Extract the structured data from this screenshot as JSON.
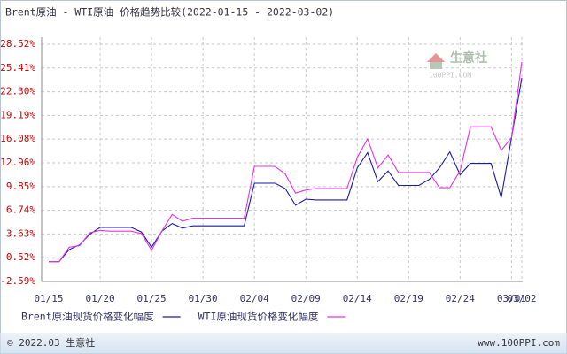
{
  "chart_data": {
    "type": "line",
    "title": "Brent原油 - WTI原油 价格趋势比较(2022-01-15 - 2022-03-02)",
    "categories": [
      "01/15",
      null,
      null,
      null,
      null,
      "01/20",
      null,
      null,
      null,
      null,
      "01/25",
      null,
      null,
      null,
      null,
      "01/30",
      null,
      null,
      null,
      null,
      "02/04",
      null,
      null,
      null,
      null,
      "02/09",
      null,
      null,
      null,
      null,
      "02/14",
      null,
      null,
      null,
      null,
      "02/19",
      null,
      null,
      null,
      null,
      "02/24",
      null,
      null,
      null,
      null,
      "03/01",
      "03/02"
    ],
    "series": [
      {
        "name": "Brent原油现货价格变化幅度",
        "color": "#1a1aa6",
        "values": [
          0,
          0,
          1.6,
          2.2,
          3.6,
          4.5,
          4.5,
          4.5,
          4.5,
          3.9,
          1.9,
          4.0,
          5.0,
          4.4,
          4.7,
          4.7,
          4.7,
          4.7,
          4.7,
          4.7,
          10.3,
          10.3,
          10.3,
          9.6,
          7.4,
          8.2,
          8.1,
          8.1,
          8.1,
          8.1,
          12.3,
          14.3,
          10.5,
          11.9,
          10.0,
          10.0,
          10.0,
          10.8,
          12.3,
          14.4,
          11.4,
          12.9,
          12.9,
          12.9,
          8.4,
          16.3,
          24.1
        ]
      },
      {
        "name": "WTI原油现货价格变化幅度",
        "color": "#e633e6",
        "values": [
          0,
          0,
          1.9,
          2.1,
          3.8,
          4.1,
          4.0,
          4.0,
          4.0,
          3.7,
          1.5,
          4.0,
          6.2,
          5.3,
          5.7,
          5.7,
          5.7,
          5.7,
          5.7,
          5.7,
          12.5,
          12.5,
          12.5,
          11.5,
          9.0,
          9.4,
          9.6,
          9.6,
          9.6,
          9.6,
          13.7,
          16.1,
          12.3,
          14.0,
          11.7,
          11.7,
          11.7,
          11.7,
          9.7,
          9.7,
          11.9,
          17.7,
          17.7,
          17.7,
          14.6,
          16.3,
          26.2
        ]
      }
    ],
    "ylim": [
      -2.59,
      28.52
    ],
    "yticks": [
      {
        "value": -2.59,
        "label": "-2.59%"
      },
      {
        "value": 0.52,
        "label": "0.52%"
      },
      {
        "value": 3.63,
        "label": "3.63%"
      },
      {
        "value": 6.74,
        "label": "6.74%"
      },
      {
        "value": 9.85,
        "label": "9.85%"
      },
      {
        "value": 12.96,
        "label": "12.96%"
      },
      {
        "value": 16.08,
        "label": "16.08%"
      },
      {
        "value": 19.19,
        "label": "19.19%"
      },
      {
        "value": 22.3,
        "label": "22.30%"
      },
      {
        "value": 25.41,
        "label": "25.41%"
      },
      {
        "value": 28.52,
        "label": "28.52%"
      }
    ],
    "grid": true,
    "watermark": {
      "name": "生意社",
      "site": "100PPI.COM"
    }
  },
  "footer": {
    "copyright": "© 2022.03 生意社",
    "site": "www.100PPI.com"
  }
}
